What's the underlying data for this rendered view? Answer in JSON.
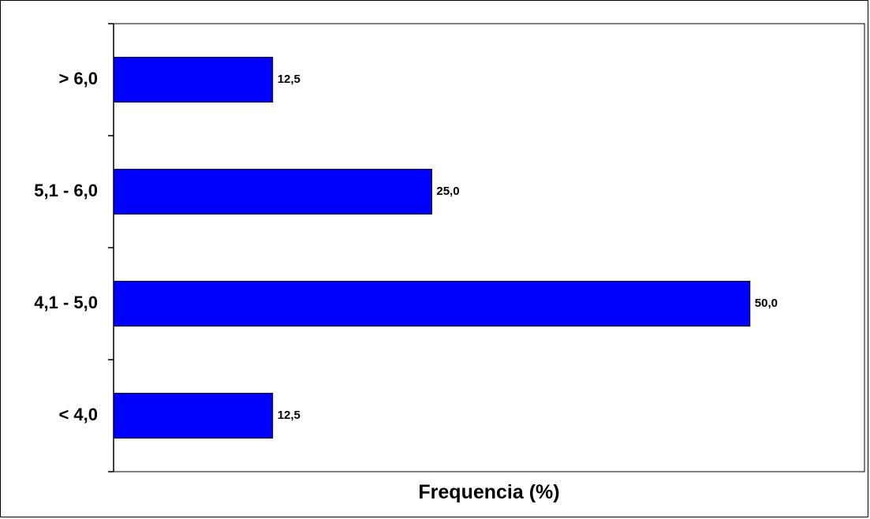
{
  "chart_data": {
    "type": "bar",
    "orientation": "horizontal",
    "categories": [
      "> 6,0",
      "5,1 - 6,0",
      "4,1 - 5,0",
      "< 4,0"
    ],
    "values": [
      12.5,
      25.0,
      50.0,
      12.5
    ],
    "value_labels": [
      "12,5",
      "25,0",
      "50,0",
      "12,5"
    ],
    "title": "",
    "xlabel": "Frequencia (%)",
    "ylabel": "",
    "xlim": [
      0,
      59
    ],
    "grid": false,
    "legend": "none",
    "bar_color": "#0000FF"
  }
}
